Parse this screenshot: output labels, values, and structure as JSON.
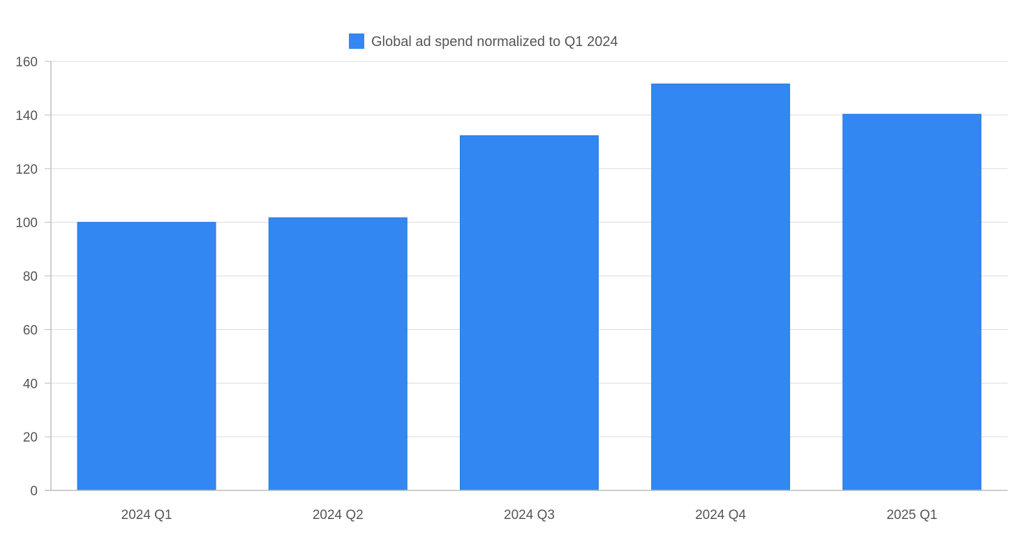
{
  "chart_data": {
    "type": "bar",
    "categories": [
      "2024 Q1",
      "2024 Q2",
      "2024 Q3",
      "2024 Q4",
      "2025 Q1"
    ],
    "series": [
      {
        "name": "Global ad spend normalized to Q1 2024",
        "values": [
          100,
          101.7,
          132.3,
          151.6,
          140.3
        ],
        "color": "#3287f2"
      }
    ],
    "title": "",
    "xlabel": "",
    "ylabel": "",
    "ylim": [
      0,
      160
    ],
    "yticks": [
      "0",
      "20",
      "40",
      "60",
      "80",
      "100",
      "120",
      "140",
      "160"
    ],
    "grid": true,
    "legend_position": "top-center"
  }
}
